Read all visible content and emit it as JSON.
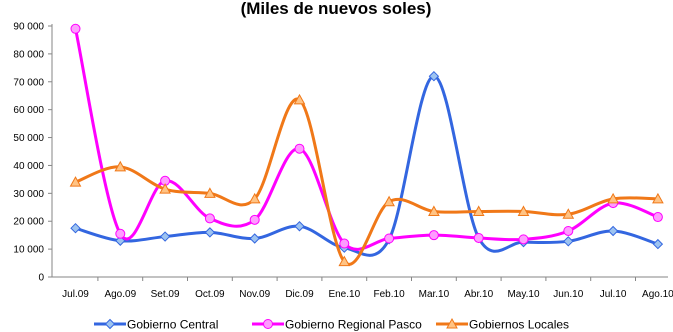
{
  "chart_data": {
    "type": "line",
    "title": "(Miles de nuevos soles)",
    "categories": [
      "Jul.09",
      "Ago.09",
      "Set.09",
      "Oct.09",
      "Nov.09",
      "Dic.09",
      "Ene.10",
      "Feb.10",
      "Mar.10",
      "Abr.10",
      "May.10",
      "Jun.10",
      "Jul.10",
      "Ago.10"
    ],
    "ylim": [
      0,
      90000
    ],
    "yticks": [
      "0",
      "10 000",
      "20 000",
      "30 000",
      "40 000",
      "50 000",
      "60 000",
      "70 000",
      "80 000",
      "90 000"
    ],
    "grid": false,
    "legend_position": "bottom",
    "series": [
      {
        "name": "Gobierno Central",
        "color": "#3366e0",
        "marker": "diamond",
        "values": [
          17500,
          13000,
          14500,
          16000,
          13800,
          18200,
          10500,
          13500,
          72000,
          14000,
          12500,
          12800,
          16500,
          11800
        ]
      },
      {
        "name": "Gobierno Regional Pasco",
        "color": "#ff00ff",
        "marker": "circle",
        "values": [
          89000,
          15500,
          34500,
          21000,
          20500,
          46000,
          12000,
          13800,
          15000,
          14000,
          13500,
          16500,
          26500,
          21500
        ]
      },
      {
        "name": "Gobiernos Locales",
        "color": "#f07818",
        "marker": "triangle",
        "values": [
          34000,
          39500,
          31500,
          30000,
          28000,
          63500,
          5500,
          27000,
          23500,
          23500,
          23500,
          22500,
          28000,
          28000
        ]
      }
    ]
  }
}
